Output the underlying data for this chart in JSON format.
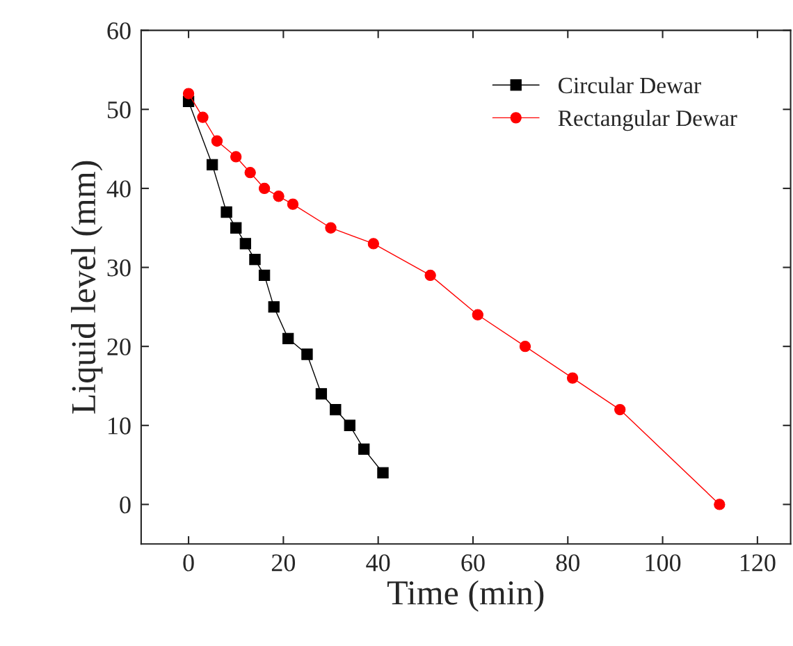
{
  "chart_data": {
    "type": "line",
    "xlabel": "Time (min)",
    "ylabel": "Liquid level (mm)",
    "xlim": [
      -10,
      127
    ],
    "xticks": [
      0,
      20,
      40,
      60,
      80,
      100,
      120
    ],
    "ylim": [
      -5,
      60
    ],
    "yticks": [
      0,
      10,
      20,
      30,
      40,
      50,
      60
    ],
    "grid": false,
    "legend": "top right",
    "series": [
      {
        "name": "Circular Dewar",
        "color": "#000000",
        "marker": "square",
        "x": [
          0,
          5,
          8,
          10,
          12,
          14,
          16,
          18,
          21,
          25,
          28,
          31,
          34,
          37,
          41
        ],
        "values": [
          51,
          43,
          37,
          35,
          33,
          31,
          29,
          25,
          21,
          19,
          14,
          12,
          10,
          7,
          4
        ]
      },
      {
        "name": "Rectangular Dewar",
        "color": "#ff0000",
        "marker": "circle",
        "x": [
          0,
          3,
          6,
          10,
          13,
          16,
          19,
          22,
          30,
          39,
          51,
          61,
          71,
          81,
          91,
          112
        ],
        "values": [
          52,
          49,
          46,
          44,
          42,
          40,
          39,
          38,
          35,
          33,
          29,
          24,
          20,
          16,
          12,
          0
        ]
      }
    ]
  }
}
